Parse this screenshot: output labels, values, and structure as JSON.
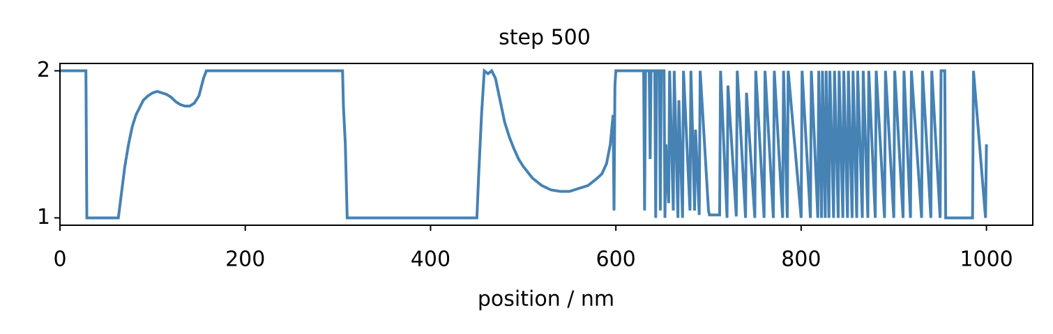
{
  "chart_data": {
    "type": "line",
    "title": "step 500",
    "x_label": "position / nm",
    "color": "#4682b4",
    "xlim": [
      0,
      1050
    ],
    "ylim": [
      0.95,
      2.05
    ],
    "xticks": [
      0,
      200,
      400,
      600,
      800,
      1000
    ],
    "yticks": [
      1,
      2
    ],
    "x": [
      0,
      28,
      29,
      63,
      66,
      70,
      74,
      78,
      82,
      86,
      90,
      95,
      100,
      105,
      110,
      115,
      120,
      125,
      130,
      135,
      140,
      145,
      150,
      155,
      158,
      305,
      306,
      308,
      310,
      450,
      452,
      455,
      458,
      462,
      466,
      470,
      475,
      480,
      485,
      490,
      495,
      500,
      510,
      520,
      530,
      540,
      550,
      560,
      570,
      580,
      585,
      590,
      594,
      597,
      598,
      599,
      600,
      630,
      631,
      632,
      636,
      637,
      638,
      642,
      643,
      644,
      647,
      648,
      649,
      652,
      653,
      654,
      657,
      658,
      662,
      663,
      667,
      668,
      672,
      673,
      680,
      681,
      685,
      686,
      690,
      691,
      700,
      701,
      712,
      713,
      720,
      721,
      730,
      731,
      740,
      741,
      750,
      751,
      760,
      761,
      770,
      771,
      780,
      781,
      785,
      786,
      800,
      801,
      810,
      811,
      818,
      819,
      822,
      823,
      826,
      827,
      830,
      831,
      835,
      836,
      840,
      841,
      845,
      846,
      850,
      851,
      855,
      856,
      860,
      861,
      866,
      867,
      872,
      873,
      880,
      881,
      890,
      891,
      900,
      901,
      910,
      911,
      918,
      919,
      930,
      931,
      940,
      941,
      950,
      951,
      955,
      956,
      985,
      986,
      999,
      1000
    ],
    "values": [
      2,
      2,
      1,
      1,
      1.15,
      1.35,
      1.5,
      1.62,
      1.7,
      1.75,
      1.8,
      1.83,
      1.85,
      1.86,
      1.85,
      1.84,
      1.82,
      1.79,
      1.77,
      1.76,
      1.76,
      1.78,
      1.83,
      1.95,
      2,
      2,
      1.75,
      1.5,
      1,
      1,
      1.3,
      1.7,
      2,
      1.98,
      2,
      1.95,
      1.8,
      1.65,
      1.55,
      1.47,
      1.4,
      1.35,
      1.27,
      1.22,
      1.19,
      1.18,
      1.18,
      1.2,
      1.22,
      1.27,
      1.3,
      1.37,
      1.5,
      1.7,
      1.05,
      1.9,
      2,
      2,
      1.05,
      2,
      2,
      1.4,
      2,
      2,
      1,
      2,
      2,
      1.05,
      2,
      2,
      1,
      1.5,
      1.1,
      2,
      1.05,
      2,
      1,
      1.8,
      1,
      2,
      1.05,
      2,
      1.05,
      1.6,
      1.02,
      2,
      1.05,
      1.02,
      1.02,
      2,
      1,
      1.9,
      1.01,
      2,
      1,
      1.85,
      1,
      2,
      1,
      2,
      1,
      2,
      1,
      2,
      1,
      2,
      1,
      2,
      1,
      2,
      1,
      2,
      1,
      2,
      1,
      2,
      1,
      2,
      1,
      2,
      1,
      2,
      1,
      2,
      1,
      2,
      1,
      2,
      1,
      2,
      1,
      2,
      1,
      2,
      1,
      2,
      1,
      2,
      1,
      2,
      1,
      2,
      1,
      2,
      1,
      2,
      1,
      2,
      1,
      2,
      2,
      1,
      1,
      2,
      1,
      1.5
    ]
  }
}
